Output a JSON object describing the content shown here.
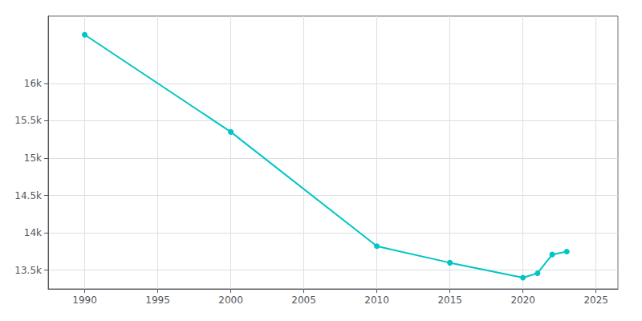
{
  "chart_data": {
    "type": "line",
    "x": [
      1990,
      2000,
      2010,
      2015,
      2020,
      2021,
      2022,
      2023
    ],
    "values": [
      16650,
      15350,
      13821,
      13600,
      13400,
      13460,
      13710,
      13750
    ],
    "color": "#00C5C5",
    "marker": "circle",
    "xlim": [
      1987.5,
      2026.5
    ],
    "xticks": [
      1990,
      1995,
      2000,
      2005,
      2010,
      2015,
      2020,
      2025
    ],
    "ylim": [
      13250,
      16900
    ],
    "yticks": [
      {
        "value": 13500,
        "label": "13.5k"
      },
      {
        "value": 14000,
        "label": "14k"
      },
      {
        "value": 14500,
        "label": "14.5k"
      },
      {
        "value": 15000,
        "label": "15k"
      },
      {
        "value": 15500,
        "label": "15.5k"
      },
      {
        "value": 16000,
        "label": "16k"
      }
    ],
    "grid": true
  }
}
